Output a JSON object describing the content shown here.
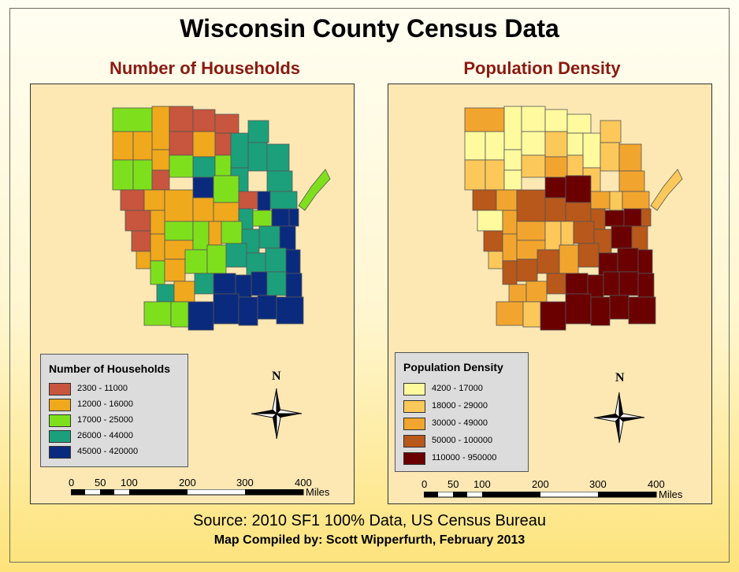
{
  "title": "Wisconsin County Census Data",
  "colors": {
    "hh": [
      "#c8553d",
      "#f0a81c",
      "#7ee01c",
      "#1ba07b",
      "#0a2a7e"
    ],
    "pd": [
      "#fffa9e",
      "#fdc85a",
      "#f2a52e",
      "#b8581a",
      "#6b0000"
    ],
    "panel_bg": "#fde8b4",
    "title_red": "#8b1a12"
  },
  "maps": [
    {
      "id": "households",
      "title": "Number of Households",
      "legend_title": "Number of Households",
      "classes": [
        "2300 - 11000",
        "12000 - 16000",
        "17000 - 25000",
        "26000 - 44000",
        "45000 - 420000"
      ],
      "scale_ticks": [
        "0",
        "50",
        "100",
        "200",
        "300",
        "400"
      ],
      "scale_unit": "Miles",
      "north": "N"
    },
    {
      "id": "density",
      "title": "Population Density",
      "legend_title": "Population Density",
      "classes": [
        "4200 - 17000",
        "18000 - 29000",
        "30000 - 49000",
        "50000 - 100000",
        "110000 - 950000"
      ],
      "scale_ticks": [
        "0",
        "50",
        "100",
        "200",
        "300",
        "400"
      ],
      "scale_unit": "Miles",
      "north": "N"
    }
  ],
  "counties_hh": [
    2,
    1,
    0,
    0,
    0,
    3,
    1,
    1,
    1,
    0,
    1,
    0,
    3,
    3,
    3,
    2,
    2,
    0,
    2,
    3,
    2,
    3,
    3,
    0,
    1,
    1,
    4,
    2,
    0,
    4,
    3,
    0,
    1,
    2,
    1,
    1,
    3,
    2,
    4,
    4,
    0,
    1,
    1,
    2,
    1,
    2,
    3,
    3,
    4,
    1,
    2,
    1,
    2,
    2,
    3,
    3,
    3,
    4,
    3,
    1,
    3,
    4,
    4,
    4,
    3,
    4,
    2,
    2,
    4,
    4,
    4,
    4,
    4
  ],
  "counties_pd": [
    2,
    0,
    0,
    0,
    0,
    1,
    0,
    0,
    0,
    0,
    1,
    0,
    0,
    1,
    2,
    1,
    1,
    0,
    1,
    2,
    1,
    1,
    2,
    3,
    2,
    3,
    4,
    4,
    2,
    1,
    2,
    0,
    2,
    2,
    3,
    3,
    3,
    4,
    4,
    3,
    3,
    2,
    2,
    1,
    1,
    3,
    3,
    4,
    3,
    1,
    3,
    3,
    3,
    2,
    3,
    4,
    4,
    4,
    2,
    2,
    3,
    4,
    4,
    4,
    4,
    4,
    2,
    1,
    4,
    4,
    4,
    4,
    4
  ],
  "source": "Source:  2010 SF1 100% Data, US Census Bureau",
  "credit": "Map Compiled by:  Scott Wipperfurth, February 2013"
}
